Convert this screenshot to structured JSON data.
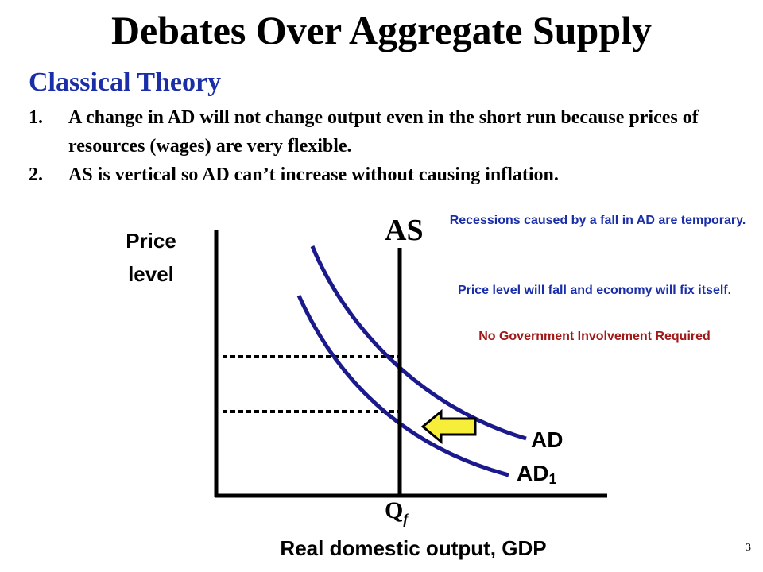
{
  "title": "Debates Over Aggregate Supply",
  "subtitle": "Classical Theory",
  "points": [
    {
      "num": "1.",
      "text": "A change in AD will not change output even in the short run because prices of resources (wages) are very flexible."
    },
    {
      "num": "2.",
      "text": "AS is vertical so AD can’t increase without causing inflation."
    }
  ],
  "notes": {
    "recessions": "Recessions caused by a fall in AD are temporary.",
    "price_level": "Price level will fall and economy will fix itself.",
    "no_gov": "No Government Involvement Required"
  },
  "diagram": {
    "y_axis_label": "Price level",
    "x_axis_label": "Real domestic output, GDP",
    "as_label": "AS",
    "ad_label": "AD",
    "ad1_label": "AD",
    "ad1_subscript": "1",
    "qf_label": "Q",
    "qf_subscript": "f"
  },
  "colors": {
    "curve": "#1a1a8c",
    "subtitle": "#1a2ea8",
    "warning": "#a01818",
    "arrow_fill": "#f7ee3a"
  },
  "slide_number": "3"
}
